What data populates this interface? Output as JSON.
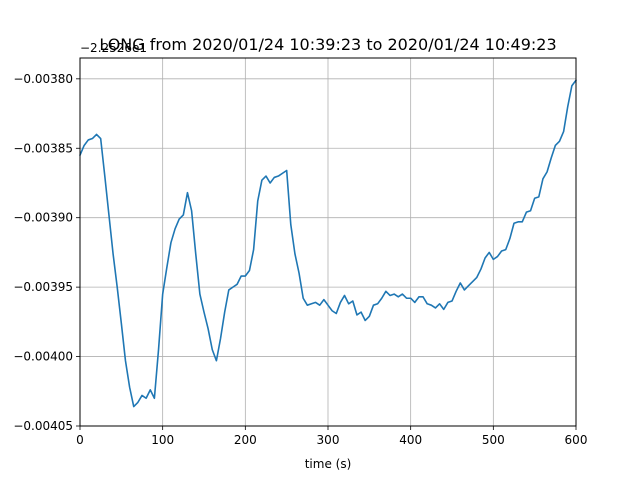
{
  "chart_data": {
    "type": "line",
    "title": "LONG from 2020/01/24 10:39:23 to 2020/01/24 10:49:23",
    "offset_text": "−2.2526e1",
    "xlabel": "time (s)",
    "ylabel": "",
    "xlim": [
      0,
      600
    ],
    "ylim": [
      -0.00405,
      -0.003785
    ],
    "grid": true,
    "legend": "none",
    "x_ticks": [
      0,
      100,
      200,
      300,
      400,
      500,
      600
    ],
    "x_tick_labels": [
      "0",
      "100",
      "200",
      "300",
      "400",
      "500",
      "600"
    ],
    "y_ticks": [
      -0.00405,
      -0.004,
      -0.00395,
      -0.0039,
      -0.00385,
      -0.0038
    ],
    "y_tick_labels": [
      "−0.00405",
      "−0.00400",
      "−0.00395",
      "−0.00390",
      "−0.00385",
      "−0.00380"
    ],
    "line_color": "#1f77b4",
    "series": [
      {
        "x": [
          0,
          5,
          10,
          15,
          20,
          25,
          30,
          35,
          40,
          45,
          50,
          55,
          60,
          65,
          70,
          75,
          80,
          85,
          90,
          95,
          100,
          105,
          110,
          115,
          120,
          125,
          130,
          135,
          140,
          145,
          150,
          155,
          160,
          165,
          170,
          175,
          180,
          185,
          190,
          195,
          200,
          205,
          210,
          215,
          220,
          225,
          230,
          235,
          240,
          245,
          250,
          255,
          260,
          265,
          270,
          275,
          280,
          285,
          290,
          295,
          300,
          305,
          310,
          315,
          320,
          325,
          330,
          335,
          340,
          345,
          350,
          355,
          360,
          365,
          370,
          375,
          380,
          385,
          390,
          395,
          400,
          405,
          410,
          415,
          420,
          425,
          430,
          435,
          440,
          445,
          450,
          455,
          460,
          465,
          470,
          475,
          480,
          485,
          490,
          495,
          500,
          505,
          510,
          515,
          520,
          525,
          530,
          535,
          540,
          545,
          550,
          555,
          560,
          565,
          570,
          575,
          580,
          585,
          590,
          595,
          600
        ],
        "y": [
          -0.003855,
          -0.003848,
          -0.003844,
          -0.003843,
          -0.00384,
          -0.003843,
          -0.00387,
          -0.003898,
          -0.003926,
          -0.00395,
          -0.003976,
          -0.004003,
          -0.004022,
          -0.004036,
          -0.004033,
          -0.004028,
          -0.00403,
          -0.004024,
          -0.00403,
          -0.003995,
          -0.003955,
          -0.003936,
          -0.003918,
          -0.003908,
          -0.003901,
          -0.003898,
          -0.003882,
          -0.003895,
          -0.003926,
          -0.003955,
          -0.003968,
          -0.00398,
          -0.003995,
          -0.004003,
          -0.003987,
          -0.003968,
          -0.003952,
          -0.00395,
          -0.003948,
          -0.003942,
          -0.003942,
          -0.003938,
          -0.003923,
          -0.003888,
          -0.003873,
          -0.00387,
          -0.003875,
          -0.003871,
          -0.00387,
          -0.003868,
          -0.003866,
          -0.003905,
          -0.003926,
          -0.00394,
          -0.003958,
          -0.003963,
          -0.003962,
          -0.003961,
          -0.003963,
          -0.003959,
          -0.003963,
          -0.003967,
          -0.003969,
          -0.003961,
          -0.003956,
          -0.003962,
          -0.00396,
          -0.00397,
          -0.003968,
          -0.003974,
          -0.003971,
          -0.003963,
          -0.003962,
          -0.003958,
          -0.003953,
          -0.003956,
          -0.003955,
          -0.003957,
          -0.003955,
          -0.003958,
          -0.003958,
          -0.003961,
          -0.003957,
          -0.003957,
          -0.003962,
          -0.003963,
          -0.003965,
          -0.003962,
          -0.003966,
          -0.003961,
          -0.00396,
          -0.003953,
          -0.003947,
          -0.003952,
          -0.003949,
          -0.003946,
          -0.003943,
          -0.003937,
          -0.003929,
          -0.003925,
          -0.00393,
          -0.003928,
          -0.003924,
          -0.003923,
          -0.003915,
          -0.003904,
          -0.003903,
          -0.003903,
          -0.003896,
          -0.003895,
          -0.003886,
          -0.003885,
          -0.003872,
          -0.003867,
          -0.003857,
          -0.003848,
          -0.003845,
          -0.003838,
          -0.00382,
          -0.003805,
          -0.003801
        ]
      }
    ]
  }
}
